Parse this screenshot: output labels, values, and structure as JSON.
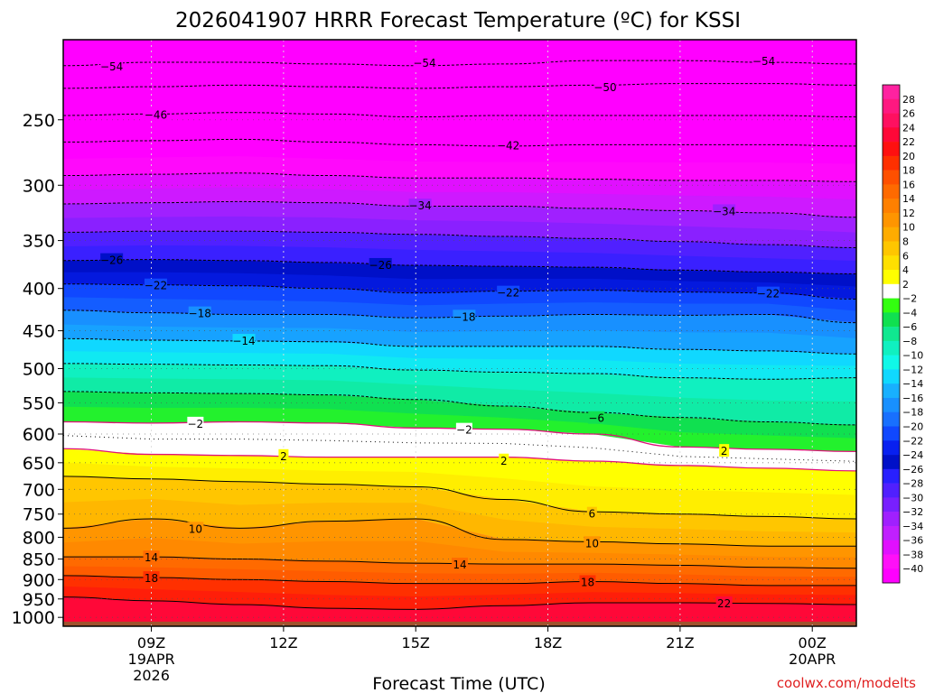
{
  "chart_data": {
    "type": "heatmap",
    "title": "2026041907 HRRR Forecast Temperature (ºC) for KSSI",
    "xlabel": "Forecast Time (UTC)",
    "ylabel": "",
    "credit": "coolwx.com/modelts",
    "x_range_hours": [
      7.0,
      25.0
    ],
    "y_range_hPa": [
      1025,
      200
    ],
    "x_ticks": [
      {
        "hour": 9,
        "label": "09Z",
        "sub": [
          "19APR",
          "2026"
        ]
      },
      {
        "hour": 12,
        "label": "12Z",
        "sub": []
      },
      {
        "hour": 15,
        "label": "15Z",
        "sub": []
      },
      {
        "hour": 18,
        "label": "18Z",
        "sub": []
      },
      {
        "hour": 21,
        "label": "21Z",
        "sub": []
      },
      {
        "hour": 24,
        "label": "00Z",
        "sub": [
          "20APR"
        ]
      }
    ],
    "y_ticks": [
      250,
      300,
      350,
      400,
      450,
      500,
      550,
      600,
      650,
      700,
      750,
      800,
      850,
      900,
      950,
      1000
    ],
    "colorbar": {
      "levels": [
        28,
        26,
        24,
        22,
        20,
        18,
        16,
        14,
        12,
        10,
        8,
        6,
        4,
        2,
        -2,
        -4,
        -6,
        -8,
        -10,
        -12,
        -14,
        -16,
        -18,
        -20,
        -22,
        -24,
        -26,
        -28,
        -30,
        -32,
        -34,
        -36,
        -38,
        -40
      ],
      "colors": [
        "#ff22a0",
        "#ff1880",
        "#ff1060",
        "#ff0838",
        "#ff1010",
        "#ff3000",
        "#ff5000",
        "#ff6a00",
        "#ff8000",
        "#ff9500",
        "#ffac00",
        "#ffc600",
        "#ffe000",
        "#ffff00",
        "#ffffff",
        "#33ff10",
        "#10e050",
        "#10e890",
        "#10f0c0",
        "#10f8e8",
        "#10d8ff",
        "#18b0ff",
        "#1890ff",
        "#1870ff",
        "#1048ff",
        "#0820f0",
        "#0010c8",
        "#2820ff",
        "#5020ff",
        "#7820ff",
        "#a020ff",
        "#c020ff",
        "#e010ff",
        "#ff10f8",
        "#ff00ff"
      ]
    },
    "isotherms": [
      {
        "temp": -54,
        "pressures": [
          215,
          213,
          213,
          214,
          215,
          214,
          212,
          212,
          213,
          214
        ]
      },
      {
        "temp": -50,
        "pressures": [
          229,
          228,
          227,
          228,
          229,
          228,
          227,
          226,
          226,
          227
        ]
      },
      {
        "temp": -46,
        "pressures": [
          247,
          246,
          245,
          246,
          248,
          247,
          247,
          247,
          247,
          248
        ]
      },
      {
        "temp": -42,
        "pressures": [
          266,
          265,
          264,
          266,
          268,
          269,
          268,
          268,
          268,
          269
        ]
      },
      {
        "temp": -38,
        "pressures": [
          292,
          291,
          290,
          292,
          294,
          294,
          295,
          296,
          296,
          297
        ]
      },
      {
        "temp": -34,
        "pressures": [
          316,
          315,
          314,
          315,
          318,
          318,
          320,
          322,
          324,
          328
        ]
      },
      {
        "temp": -30,
        "pressures": [
          342,
          341,
          341,
          342,
          344,
          346,
          348,
          351,
          354,
          357
        ]
      },
      {
        "temp": -26,
        "pressures": [
          370,
          369,
          370,
          372,
          375,
          376,
          377,
          380,
          382,
          384
        ]
      },
      {
        "temp": -22,
        "pressures": [
          395,
          396,
          397,
          400,
          405,
          403,
          402,
          404,
          405,
          412
        ]
      },
      {
        "temp": -18,
        "pressures": [
          425,
          428,
          430,
          430,
          434,
          432,
          430,
          431,
          430,
          440
        ]
      },
      {
        "temp": -14,
        "pressures": [
          460,
          462,
          463,
          464,
          470,
          470,
          470,
          474,
          476,
          480
        ]
      },
      {
        "temp": -10,
        "pressures": [
          493,
          494,
          495,
          496,
          502,
          505,
          507,
          513,
          515,
          513
        ]
      },
      {
        "temp": -6,
        "pressures": [
          533,
          535,
          536,
          538,
          545,
          555,
          565,
          573,
          580,
          585
        ]
      },
      {
        "temp": -2,
        "pressures": [
          580,
          582,
          580,
          582,
          590,
          592,
          600,
          622,
          626,
          630
        ]
      },
      {
        "temp": 2,
        "pressures": [
          625,
          635,
          637,
          640,
          640,
          640,
          647,
          655,
          660,
          665
        ]
      },
      {
        "temp": 6,
        "pressures": [
          675,
          680,
          685,
          690,
          695,
          720,
          745,
          750,
          755,
          760
        ]
      },
      {
        "temp": 10,
        "pressures": [
          780,
          760,
          780,
          765,
          760,
          805,
          810,
          815,
          820,
          820
        ]
      },
      {
        "temp": 14,
        "pressures": [
          845,
          845,
          850,
          855,
          860,
          862,
          862,
          865,
          870,
          872
        ]
      },
      {
        "temp": 18,
        "pressures": [
          890,
          895,
          900,
          905,
          910,
          910,
          905,
          910,
          915,
          915
        ]
      },
      {
        "temp": 22,
        "pressures": [
          945,
          955,
          965,
          975,
          978,
          968,
          960,
          960,
          962,
          965
        ]
      }
    ],
    "isotherm_labels": [
      {
        "text": "-54",
        "hour": 8.1,
        "p": 215
      },
      {
        "text": "-54",
        "hour": 15.2,
        "p": 213
      },
      {
        "text": "-54",
        "hour": 22.9,
        "p": 212
      },
      {
        "text": "-50",
        "hour": 19.3,
        "p": 228
      },
      {
        "text": "-46",
        "hour": 9.1,
        "p": 246
      },
      {
        "text": "-42",
        "hour": 17.1,
        "p": 268
      },
      {
        "text": "-34",
        "hour": 15.1,
        "p": 317
      },
      {
        "text": "-34",
        "hour": 22.0,
        "p": 322
      },
      {
        "text": "-26",
        "hour": 8.1,
        "p": 369
      },
      {
        "text": "-26",
        "hour": 14.2,
        "p": 374
      },
      {
        "text": "-22",
        "hour": 9.1,
        "p": 396
      },
      {
        "text": "-22",
        "hour": 17.1,
        "p": 404
      },
      {
        "text": "-22",
        "hour": 23.0,
        "p": 405
      },
      {
        "text": "-18",
        "hour": 10.1,
        "p": 428
      },
      {
        "text": "-18",
        "hour": 16.1,
        "p": 432
      },
      {
        "text": "-14",
        "hour": 11.1,
        "p": 462
      },
      {
        "text": "-6",
        "hour": 19.1,
        "p": 573
      },
      {
        "text": "-2",
        "hour": 10.0,
        "p": 582
      },
      {
        "text": "-2",
        "hour": 16.1,
        "p": 592
      },
      {
        "text": "2",
        "hour": 12.0,
        "p": 637
      },
      {
        "text": "2",
        "hour": 17.0,
        "p": 645
      },
      {
        "text": "2",
        "hour": 22.0,
        "p": 628
      },
      {
        "text": "6",
        "hour": 19.0,
        "p": 748
      },
      {
        "text": "10",
        "hour": 10.0,
        "p": 780
      },
      {
        "text": "10",
        "hour": 19.0,
        "p": 812
      },
      {
        "text": "14",
        "hour": 9.0,
        "p": 845
      },
      {
        "text": "14",
        "hour": 16.0,
        "p": 862
      },
      {
        "text": "18",
        "hour": 9.0,
        "p": 895
      },
      {
        "text": "18",
        "hour": 18.9,
        "p": 905
      },
      {
        "text": "22",
        "hour": 22.0,
        "p": 960
      }
    ]
  }
}
